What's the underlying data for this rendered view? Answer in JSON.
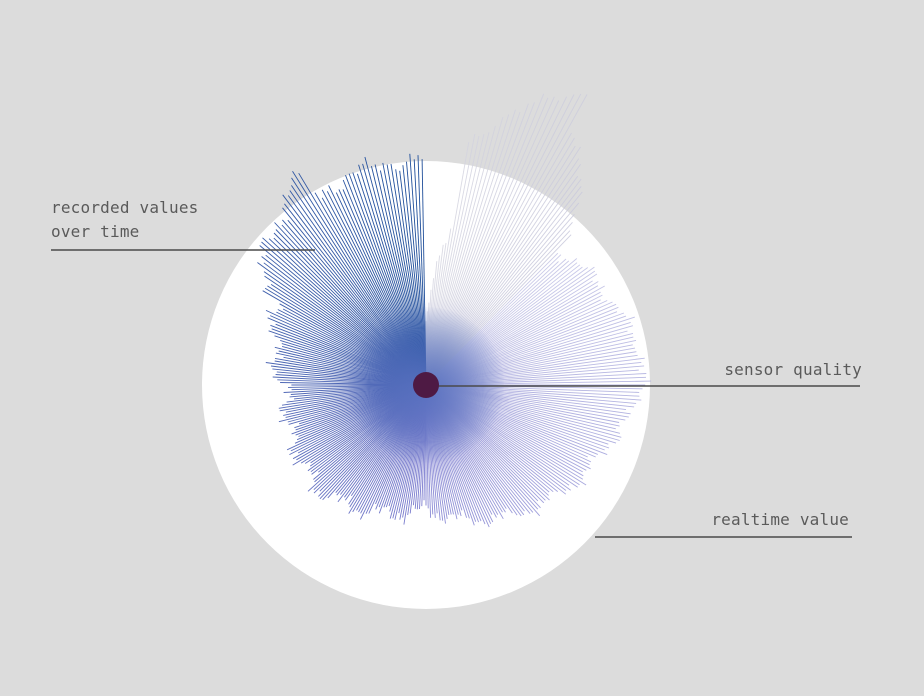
{
  "annotations": {
    "recorded_line1": "recorded values",
    "recorded_line2": "over time",
    "sensor_quality": "sensor quality",
    "realtime_value": "realtime value"
  },
  "colors": {
    "background": "#dcdcdc",
    "dial": "#ffffff",
    "recorded_dark": "#1f4f9a",
    "recorded_light": "#7f7fd0",
    "faded": "#c8c8d8",
    "center_dot": "#4e1a44",
    "leader_line": "#4a4a4a"
  },
  "chart_data": {
    "type": "radial-bar",
    "recorded_fraction": 0.5
  }
}
